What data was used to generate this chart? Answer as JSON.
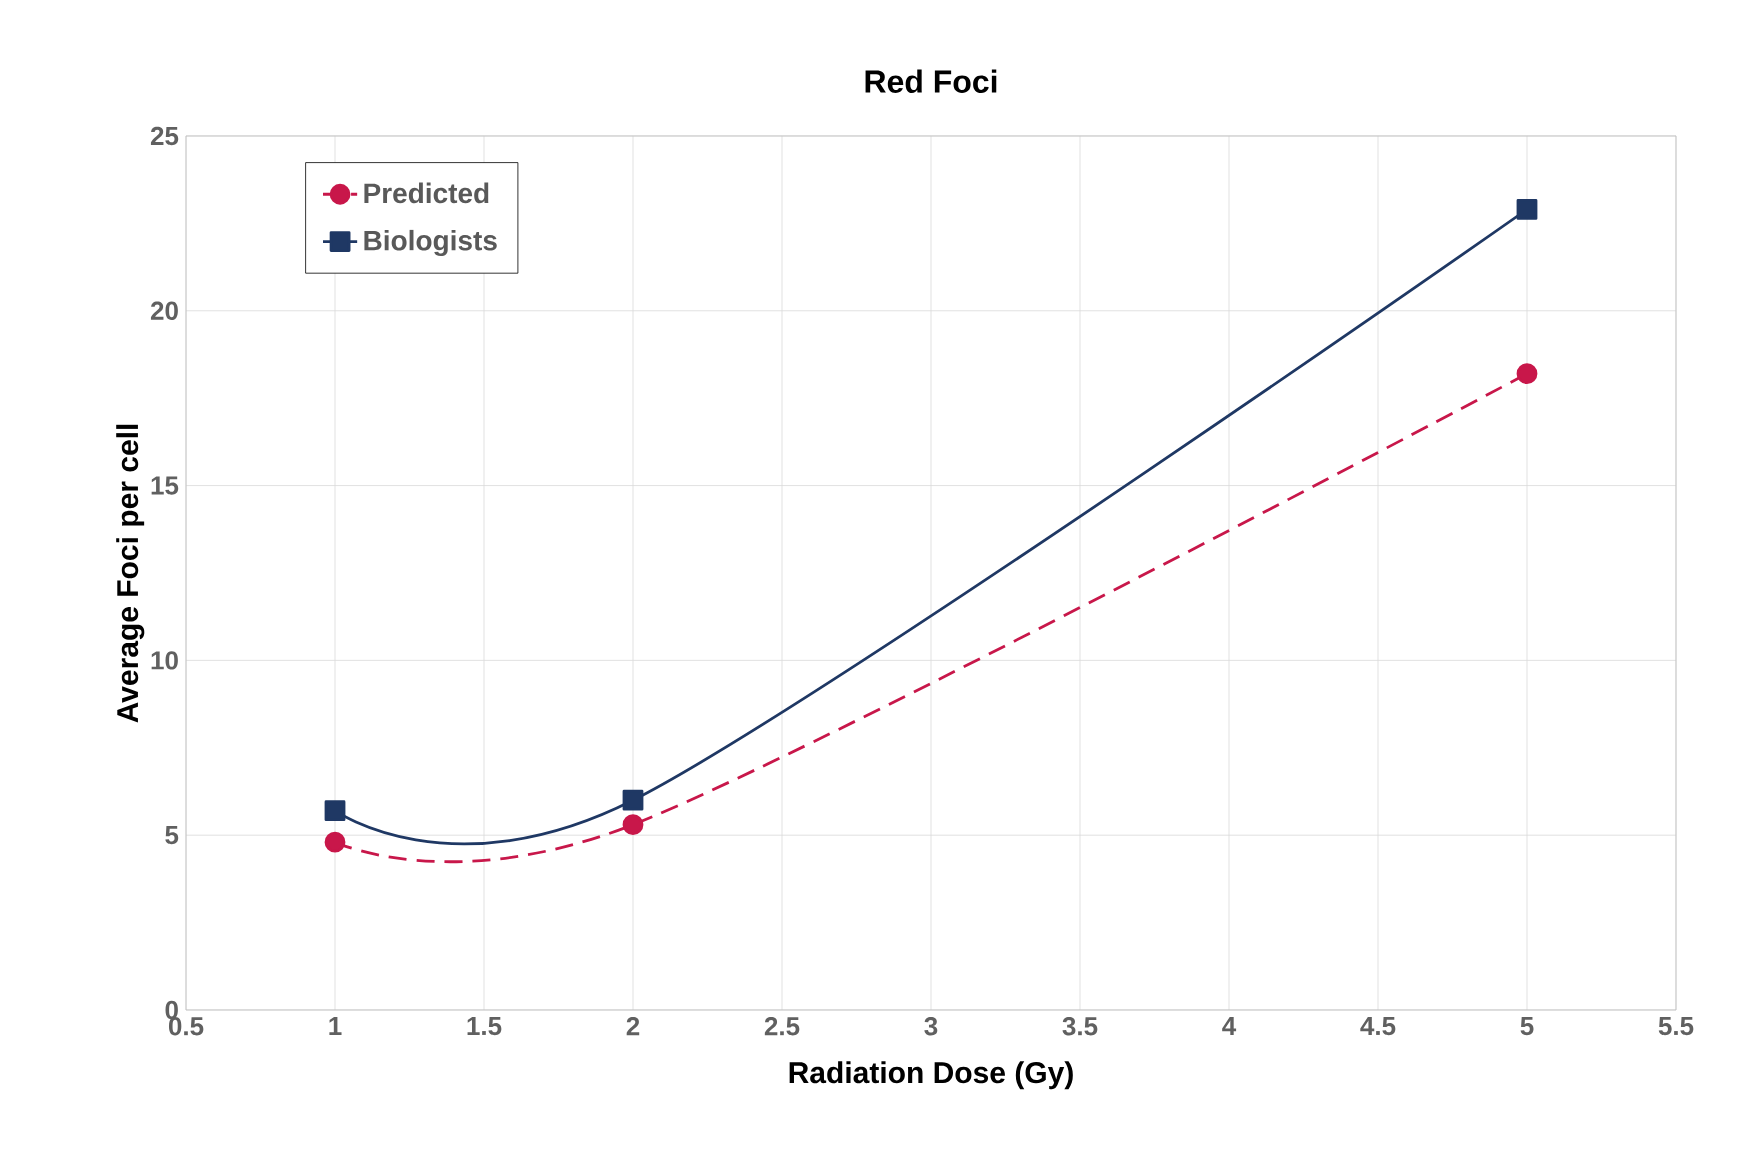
{
  "chart_data": {
    "type": "line",
    "title": "Red Foci",
    "xlabel": "Radiation Dose (Gy)",
    "ylabel": "Average Foci per cell",
    "x": [
      1,
      2,
      5
    ],
    "series": [
      {
        "name": "Predicted",
        "color": "#c8174a",
        "values": [
          4.8,
          5.3,
          18.2
        ],
        "marker": "circle",
        "line_style": "dashed"
      },
      {
        "name": "Biologists",
        "color": "#1f3864",
        "values": [
          5.7,
          6.0,
          22.9
        ],
        "marker": "square",
        "line_style": "solid"
      }
    ],
    "xlim": [
      0.5,
      5.5
    ],
    "xticks": [
      0.5,
      1,
      1.5,
      2,
      2.5,
      3,
      3.5,
      4,
      4.5,
      5,
      5.5
    ],
    "ylim": [
      0,
      25
    ],
    "yticks": [
      0,
      5,
      10,
      15,
      20,
      25
    ],
    "grid": true,
    "legend": "top left"
  }
}
